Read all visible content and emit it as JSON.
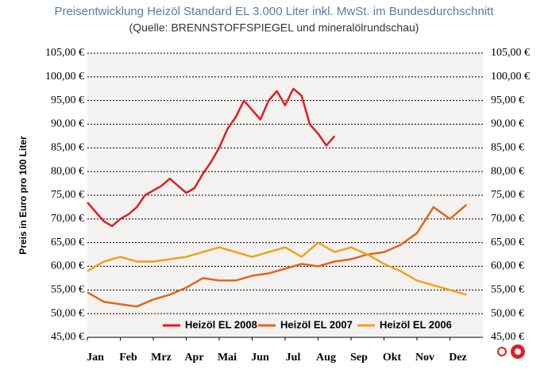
{
  "chart_data": {
    "type": "line",
    "title": "Preisentwicklung Heizöl Standard EL 3.000 Liter inkl. MwSt. im Bundesdurchschnitt",
    "subtitle": "(Quelle: BRENNSTOFFSPIEGEL und mineralölrundschau)",
    "y_label": "Preis in Euro pro 100 Liter",
    "xlim": [
      0,
      12
    ],
    "xticks": [
      {
        "value": 0,
        "label": "Jan"
      },
      {
        "value": 1,
        "label": "Feb"
      },
      {
        "value": 2,
        "label": "Mrz"
      },
      {
        "value": 3,
        "label": "Apr"
      },
      {
        "value": 4,
        "label": "Mai"
      },
      {
        "value": 5,
        "label": "Jun"
      },
      {
        "value": 6,
        "label": "Jul"
      },
      {
        "value": 7,
        "label": "Aug"
      },
      {
        "value": 8,
        "label": "Sep"
      },
      {
        "value": 9,
        "label": "Okt"
      },
      {
        "value": 10,
        "label": "Nov"
      },
      {
        "value": 11,
        "label": "Dez"
      }
    ],
    "ylim": [
      45,
      105
    ],
    "yticks": [
      {
        "value": 45,
        "label": "45,00 €"
      },
      {
        "value": 50,
        "label": "50,00 €"
      },
      {
        "value": 55,
        "label": "55,00 €"
      },
      {
        "value": 60,
        "label": "60,00 €"
      },
      {
        "value": 65,
        "label": "65,00 €"
      },
      {
        "value": 70,
        "label": "70,00 €"
      },
      {
        "value": 75,
        "label": "75,00 €"
      },
      {
        "value": 80,
        "label": "80,00 €"
      },
      {
        "value": 85,
        "label": "85,00 €"
      },
      {
        "value": 90,
        "label": "90,00 €"
      },
      {
        "value": 95,
        "label": "95,00 €"
      },
      {
        "value": 100,
        "label": "100,00 €"
      },
      {
        "value": 105,
        "label": "105,00 €"
      }
    ],
    "grid": true,
    "legend": "lower center",
    "series": [
      {
        "name": "Heizöl EL 2008",
        "color": "#dd1f26",
        "x": [
          0,
          0.25,
          0.5,
          0.75,
          1,
          1.25,
          1.5,
          1.75,
          2,
          2.25,
          2.5,
          2.75,
          3,
          3.25,
          3.5,
          3.75,
          4,
          4.25,
          4.5,
          4.75,
          5,
          5.25,
          5.5,
          5.75,
          6,
          6.25,
          6.5,
          6.75,
          7,
          7.25,
          7.5
        ],
        "values": [
          73.5,
          71.5,
          69.5,
          68.5,
          70,
          71,
          72.5,
          75,
          76,
          77,
          78.5,
          77,
          75.5,
          76.5,
          79.5,
          82,
          85,
          89,
          91.5,
          95,
          93,
          91,
          95,
          97,
          94,
          97.5,
          96,
          90,
          88,
          85.5,
          87.5
        ]
      },
      {
        "name": "Heizöl EL 2007",
        "color": "#e2661b",
        "x": [
          0,
          0.5,
          1,
          1.5,
          2,
          2.5,
          3,
          3.5,
          4,
          4.5,
          5,
          5.5,
          6,
          6.5,
          7,
          7.5,
          8,
          8.5,
          9,
          9.5,
          10,
          10.5,
          11,
          11.5
        ],
        "values": [
          54.5,
          52.5,
          52,
          51.5,
          53,
          54,
          55.5,
          57.5,
          57,
          57,
          58,
          58.5,
          59.5,
          60.5,
          60,
          61,
          61.5,
          62.5,
          63,
          64.5,
          67,
          72.5,
          70,
          73
        ]
      },
      {
        "name": "Heizöl EL 2006",
        "color": "#efa21b",
        "x": [
          0,
          0.5,
          1,
          1.5,
          2,
          2.5,
          3,
          3.5,
          4,
          4.5,
          5,
          5.5,
          6,
          6.5,
          7,
          7.5,
          8,
          8.5,
          9,
          9.5,
          10,
          10.5,
          11,
          11.5
        ],
        "values": [
          59,
          61,
          62,
          61,
          61,
          61.5,
          62,
          63,
          64,
          63,
          62,
          63,
          64,
          62,
          65,
          63,
          64,
          62.5,
          60.5,
          59,
          57,
          56,
          55,
          54
        ]
      }
    ]
  }
}
